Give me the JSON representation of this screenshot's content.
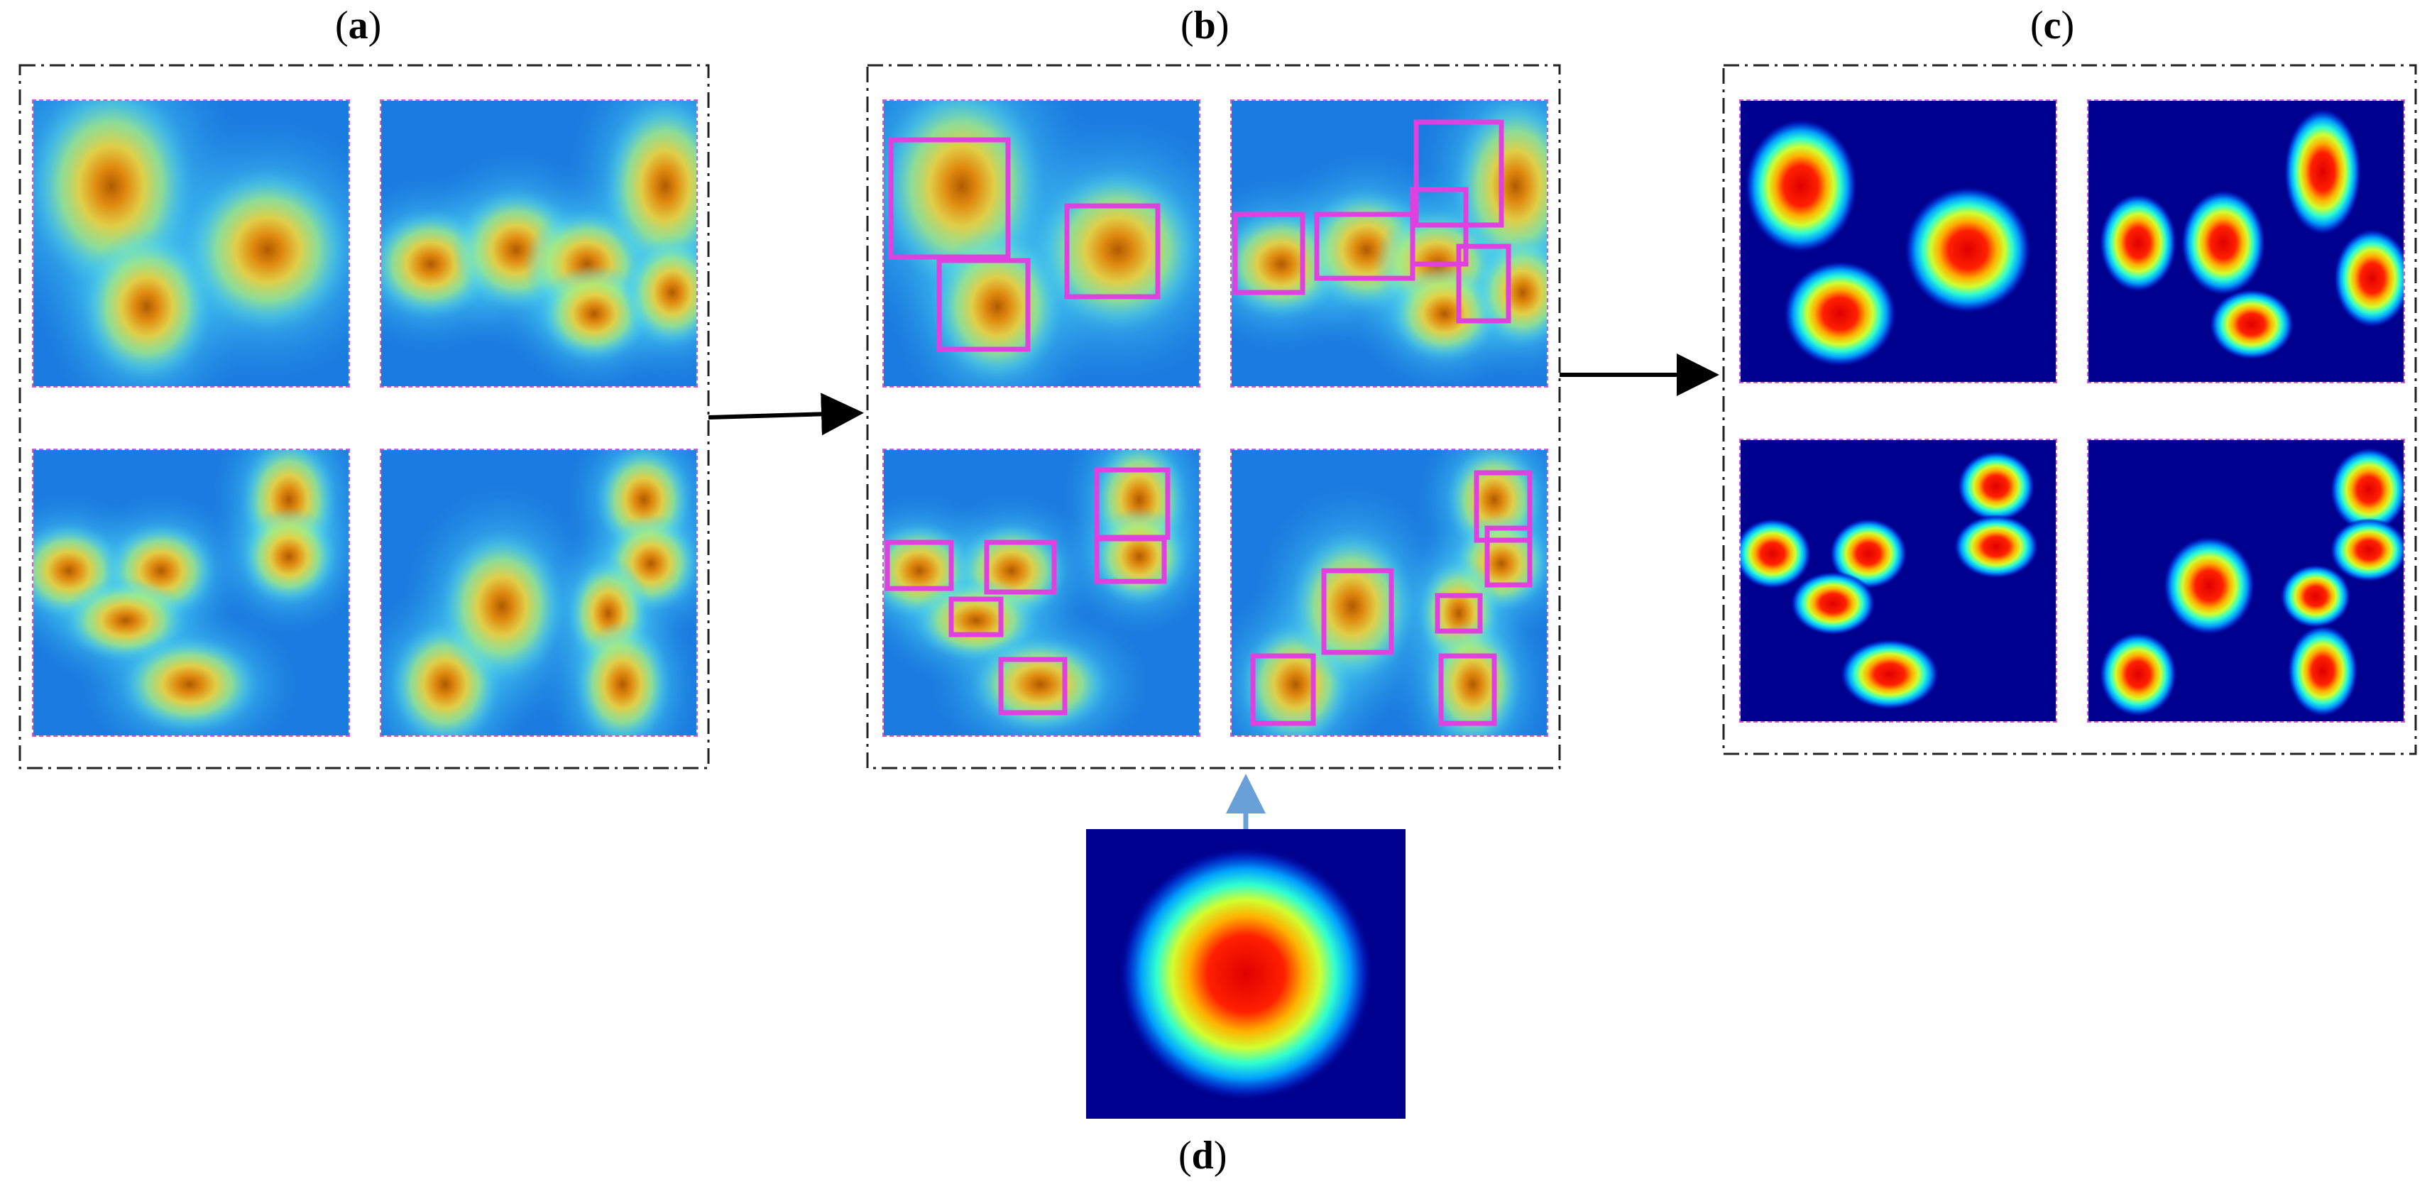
{
  "labels": {
    "a": "a",
    "b": "b",
    "c": "c",
    "d": "d"
  },
  "colors": {
    "frame": "#222222",
    "box": "#e040e0",
    "tile_border": "#d05ad0",
    "arrow": "#000000",
    "arrow_up": "#6aa0d8",
    "jet_bg": "#00008f"
  },
  "legend_note": ""
}
